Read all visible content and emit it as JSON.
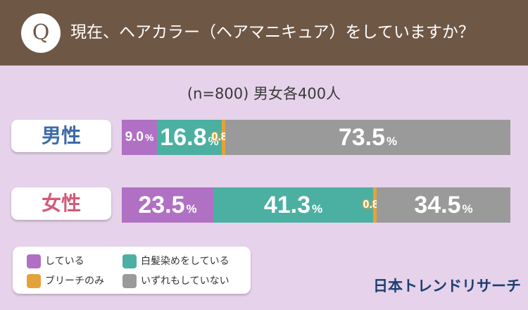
{
  "header": {
    "badge": "Q",
    "question": "現在、ヘアカラー（ヘアマニキュア）をしていますか？"
  },
  "sample_note": "(n=800) 男女各400人",
  "colors": {
    "header_bg": "#6f5746",
    "page_bg": "#e6d2ea",
    "purple": "#b070c4",
    "teal": "#4bb0a2",
    "orange": "#e3a33a",
    "gray": "#9a9a9a",
    "male_label": "#3d6ba8",
    "female_label": "#d45a79",
    "brand": "#1c3f73"
  },
  "chart_data": {
    "type": "bar",
    "orientation": "horizontal-stacked-100",
    "categories": [
      "男性",
      "女性"
    ],
    "series": [
      {
        "name": "している",
        "color": "#b070c4",
        "values": [
          9.0,
          23.5
        ]
      },
      {
        "name": "白髪染めをしている",
        "color": "#4bb0a2",
        "values": [
          16.8,
          41.3
        ]
      },
      {
        "name": "ブリーチのみ",
        "color": "#e3a33a",
        "values": [
          0.8,
          0.8
        ]
      },
      {
        "name": "いずれもしていない",
        "color": "#9a9a9a",
        "values": [
          73.5,
          34.5
        ]
      }
    ],
    "value_labels": [
      [
        "9.0",
        "16.8",
        "0.8",
        "73.5"
      ],
      [
        "23.5",
        "41.3",
        "0.8",
        "34.5"
      ]
    ],
    "unit": "%",
    "xlim": [
      0,
      100
    ],
    "legend_placement": "bottom-left"
  },
  "brand": "日本トレンドリサーチ"
}
